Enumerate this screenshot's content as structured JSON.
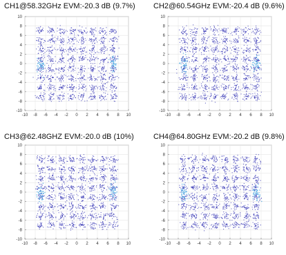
{
  "chart_data": [
    {
      "type": "scatter",
      "title": "CH1@58.32GHz EVM:-20.3 dB (9.7%)",
      "xlabel": "",
      "ylabel": "",
      "xlim": [
        -10,
        10
      ],
      "ylim": [
        -10,
        10
      ],
      "xticks": [
        -10,
        -8,
        -6,
        -4,
        -2,
        0,
        2,
        4,
        6,
        8,
        10
      ],
      "yticks": [
        -10,
        -8,
        -6,
        -4,
        -2,
        0,
        2,
        4,
        6,
        8,
        10
      ],
      "grid": true,
      "constellation_points": [
        -7,
        -5,
        -3,
        -1,
        1,
        3,
        5,
        7
      ],
      "colors": {
        "point": "#2b2bb0",
        "dense": "#3da0e0",
        "grid": "#e6e6e6"
      }
    },
    {
      "type": "scatter",
      "title": "CH2@60.54GHz EVM:-20.4 dB (9.6%)",
      "xlabel": "",
      "ylabel": "",
      "xlim": [
        -10,
        10
      ],
      "ylim": [
        -10,
        10
      ],
      "xticks": [
        -10,
        -8,
        -6,
        -4,
        -2,
        0,
        2,
        4,
        6,
        8,
        10
      ],
      "yticks": [
        -10,
        -8,
        -6,
        -4,
        -2,
        0,
        2,
        4,
        6,
        8,
        10
      ],
      "grid": true,
      "constellation_points": [
        -7,
        -5,
        -3,
        -1,
        1,
        3,
        5,
        7
      ],
      "colors": {
        "point": "#2b2bb0",
        "dense": "#3da0e0",
        "grid": "#e6e6e6"
      }
    },
    {
      "type": "scatter",
      "title": "CH3@62.48GHZ EVM:-20.0 dB (10%)",
      "xlabel": "",
      "ylabel": "",
      "xlim": [
        -10,
        10
      ],
      "ylim": [
        -10,
        10
      ],
      "xticks": [
        -10,
        -8,
        -6,
        -4,
        -2,
        0,
        2,
        4,
        6,
        8,
        10
      ],
      "yticks": [
        -10,
        -8,
        -6,
        -4,
        -2,
        0,
        2,
        4,
        6,
        8,
        10
      ],
      "grid": true,
      "constellation_points": [
        -7,
        -5,
        -3,
        -1,
        1,
        3,
        5,
        7
      ],
      "colors": {
        "point": "#2b2bb0",
        "dense": "#3da0e0",
        "grid": "#e6e6e6"
      }
    },
    {
      "type": "scatter",
      "title": "CH4@64.80GHz EVM:-20.2 dB (9.8%)",
      "xlabel": "",
      "ylabel": "",
      "xlim": [
        -10,
        10
      ],
      "ylim": [
        -10,
        10
      ],
      "xticks": [
        -10,
        -8,
        -6,
        -4,
        -2,
        0,
        2,
        4,
        6,
        8,
        10
      ],
      "yticks": [
        -10,
        -8,
        -6,
        -4,
        -2,
        0,
        2,
        4,
        6,
        8,
        10
      ],
      "grid": true,
      "constellation_points": [
        -7,
        -5,
        -3,
        -1,
        1,
        3,
        5,
        7
      ],
      "colors": {
        "point": "#2b2bb0",
        "dense": "#3da0e0",
        "grid": "#e6e6e6"
      }
    }
  ]
}
